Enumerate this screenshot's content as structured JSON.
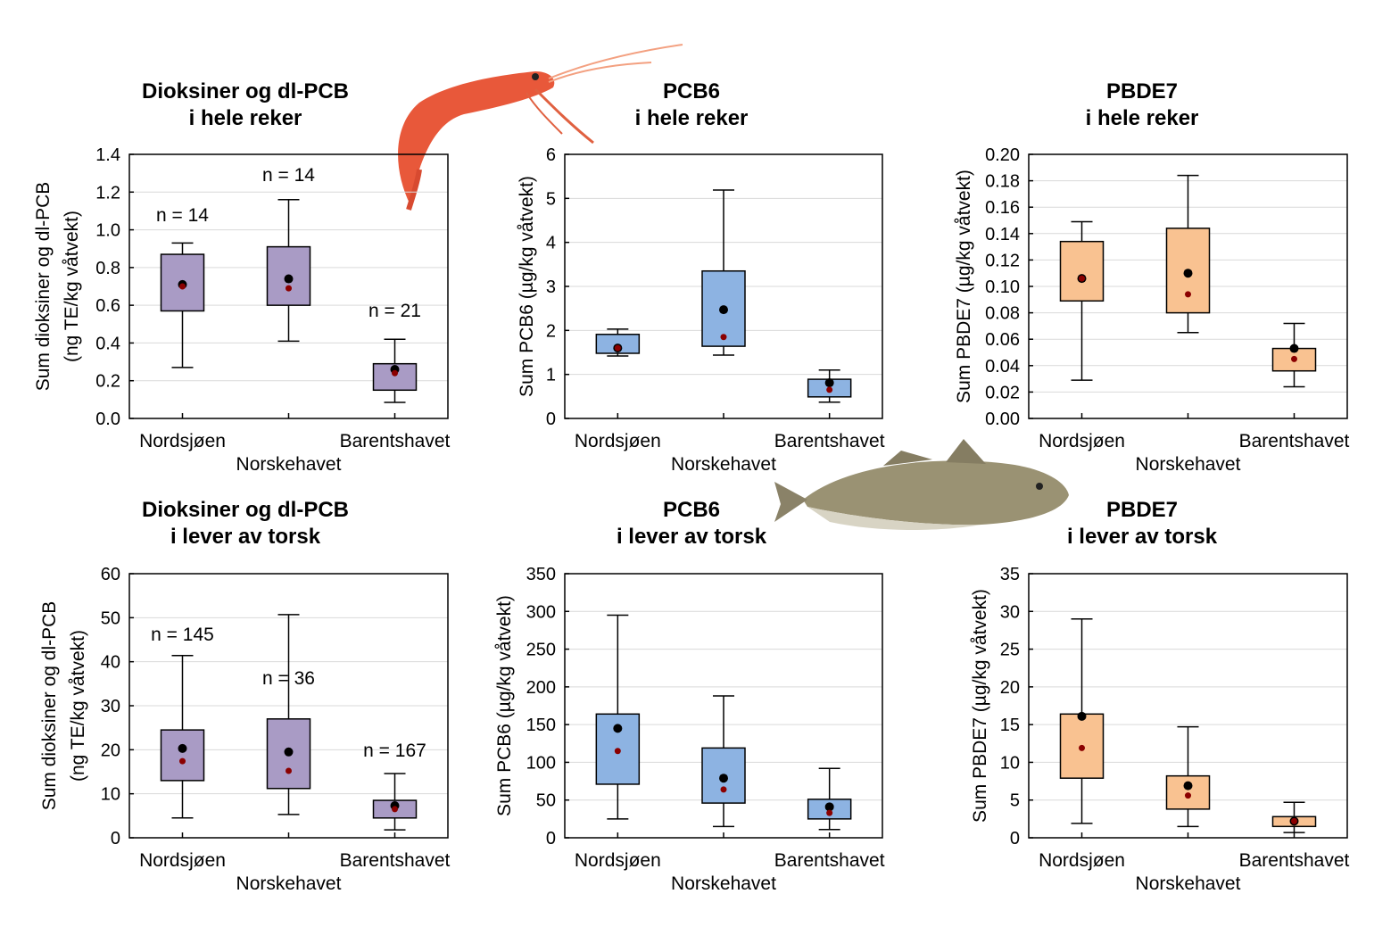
{
  "chart_data": [
    {
      "type": "box",
      "title": [
        "Dioksiner og dl-PCB",
        "i hele reker"
      ],
      "ylabel": [
        "Sum dioksiner og dl-PCB",
        "(ng TE/kg våtvekt)"
      ],
      "ylim": [
        0,
        1.4
      ],
      "ytick_step": 0.2,
      "ytick_decimals": 1,
      "yticks": [
        "0.0",
        "0.2",
        "0.4",
        "0.6",
        "0.8",
        "1.0",
        "1.2",
        "1.4"
      ],
      "grid": true,
      "box_color": "#A99BC5",
      "categories": [
        "Nordsjøen",
        "Norskehavet",
        "Barentshavet"
      ],
      "n_labels": [
        "n = 14",
        "n = 14",
        "n = 21"
      ],
      "series": [
        {
          "whisker_low": 0.27,
          "q1": 0.57,
          "q3": 0.87,
          "whisker_high": 0.93,
          "black_dot": 0.71,
          "red_dot": 0.7
        },
        {
          "whisker_low": 0.41,
          "q1": 0.6,
          "q3": 0.91,
          "whisker_high": 1.16,
          "black_dot": 0.74,
          "red_dot": 0.69
        },
        {
          "whisker_low": 0.085,
          "q1": 0.15,
          "q3": 0.29,
          "whisker_high": 0.42,
          "black_dot": 0.26,
          "red_dot": 0.24
        }
      ]
    },
    {
      "type": "box",
      "title": [
        "PCB6",
        "i hele reker"
      ],
      "ylabel": [
        "Sum PCB6 (µg/kg våtvekt)"
      ],
      "ylim": [
        0,
        6
      ],
      "ytick_step": 1,
      "ytick_decimals": 0,
      "yticks": [
        "0",
        "1",
        "2",
        "3",
        "4",
        "5",
        "6"
      ],
      "grid": true,
      "box_color": "#8DB3E2",
      "categories": [
        "Nordsjøen",
        "Norskehavet",
        "Barentshavet"
      ],
      "n_labels": [],
      "series": [
        {
          "whisker_low": 1.42,
          "q1": 1.48,
          "q3": 1.91,
          "whisker_high": 2.03,
          "black_dot": 1.6,
          "red_dot": 1.6
        },
        {
          "whisker_low": 1.44,
          "q1": 1.64,
          "q3": 3.35,
          "whisker_high": 5.19,
          "black_dot": 2.47,
          "red_dot": 1.85
        },
        {
          "whisker_low": 0.37,
          "q1": 0.49,
          "q3": 0.89,
          "whisker_high": 1.1,
          "black_dot": 0.81,
          "red_dot": 0.65
        }
      ]
    },
    {
      "type": "box",
      "title": [
        "PBDE7",
        "i hele reker"
      ],
      "ylabel": [
        "Sum PBDE7 (µg/kg våtvekt)"
      ],
      "ylim": [
        0,
        0.2
      ],
      "ytick_step": 0.02,
      "ytick_decimals": 2,
      "yticks": [
        "0.00",
        "0.02",
        "0.04",
        "0.06",
        "0.08",
        "0.10",
        "0.12",
        "0.14",
        "0.16",
        "0.18",
        "0.20"
      ],
      "grid": true,
      "box_color": "#F9C291",
      "categories": [
        "Nordsjøen",
        "Norskehavet",
        "Barentshavet"
      ],
      "n_labels": [],
      "series": [
        {
          "whisker_low": 0.029,
          "q1": 0.089,
          "q3": 0.134,
          "whisker_high": 0.149,
          "black_dot": 0.106,
          "red_dot": 0.106
        },
        {
          "whisker_low": 0.065,
          "q1": 0.08,
          "q3": 0.144,
          "whisker_high": 0.184,
          "black_dot": 0.11,
          "red_dot": 0.094
        },
        {
          "whisker_low": 0.024,
          "q1": 0.036,
          "q3": 0.053,
          "whisker_high": 0.072,
          "black_dot": 0.053,
          "red_dot": 0.045
        }
      ]
    },
    {
      "type": "box",
      "title": [
        "Dioksiner og dl-PCB",
        "i lever av torsk"
      ],
      "ylabel": [
        "Sum dioksiner og dl-PCB",
        "(ng TE/kg våtvekt)"
      ],
      "ylim": [
        0,
        60
      ],
      "ytick_step": 10,
      "ytick_decimals": 0,
      "yticks": [
        "0",
        "10",
        "20",
        "30",
        "40",
        "50",
        "60"
      ],
      "grid": true,
      "box_color": "#A99BC5",
      "categories": [
        "Nordsjøen",
        "Norskehavet",
        "Barentshavet"
      ],
      "n_labels": [
        "n = 145",
        "n = 36",
        "n = 167"
      ],
      "series": [
        {
          "whisker_low": 4.5,
          "q1": 13.0,
          "q3": 24.5,
          "whisker_high": 41.4,
          "black_dot": 20.3,
          "red_dot": 17.4
        },
        {
          "whisker_low": 5.3,
          "q1": 11.2,
          "q3": 27.0,
          "whisker_high": 50.7,
          "black_dot": 19.5,
          "red_dot": 15.2
        },
        {
          "whisker_low": 1.8,
          "q1": 4.5,
          "q3": 8.5,
          "whisker_high": 14.6,
          "black_dot": 7.3,
          "red_dot": 6.5
        }
      ]
    },
    {
      "type": "box",
      "title": [
        "PCB6",
        "i lever av torsk"
      ],
      "ylabel": [
        "Sum PCB6 (µg/kg våtvekt)"
      ],
      "ylim": [
        0,
        350
      ],
      "ytick_step": 50,
      "ytick_decimals": 0,
      "yticks": [
        "0",
        "50",
        "100",
        "150",
        "200",
        "250",
        "300",
        "350"
      ],
      "grid": true,
      "box_color": "#8DB3E2",
      "categories": [
        "Nordsjøen",
        "Norskehavet",
        "Barentshavet"
      ],
      "n_labels": [],
      "series": [
        {
          "whisker_low": 25,
          "q1": 71,
          "q3": 164,
          "whisker_high": 295,
          "black_dot": 145,
          "red_dot": 115
        },
        {
          "whisker_low": 15,
          "q1": 46,
          "q3": 119,
          "whisker_high": 188,
          "black_dot": 79,
          "red_dot": 64
        },
        {
          "whisker_low": 11,
          "q1": 25,
          "q3": 51,
          "whisker_high": 92,
          "black_dot": 41,
          "red_dot": 33
        }
      ]
    },
    {
      "type": "box",
      "title": [
        "PBDE7",
        "i lever av torsk"
      ],
      "ylabel": [
        "Sum PBDE7 (µg/kg våtvekt)"
      ],
      "ylim": [
        0,
        35
      ],
      "ytick_step": 5,
      "ytick_decimals": 0,
      "yticks": [
        "0",
        "5",
        "10",
        "15",
        "20",
        "25",
        "30",
        "35"
      ],
      "grid": true,
      "box_color": "#F9C291",
      "categories": [
        "Nordsjøen",
        "Norskehavet",
        "Barentshavet"
      ],
      "n_labels": [],
      "series": [
        {
          "whisker_low": 1.9,
          "q1": 7.9,
          "q3": 16.4,
          "whisker_high": 29.0,
          "black_dot": 16.1,
          "red_dot": 11.9
        },
        {
          "whisker_low": 1.5,
          "q1": 3.8,
          "q3": 8.2,
          "whisker_high": 14.7,
          "black_dot": 6.9,
          "red_dot": 5.6
        },
        {
          "whisker_low": 0.7,
          "q1": 1.5,
          "q3": 2.8,
          "whisker_high": 4.7,
          "black_dot": 2.2,
          "red_dot": 2.2
        }
      ]
    }
  ],
  "colors": {
    "black_dot": "#000000",
    "red_dot": "#8B0000",
    "grid": "#D9D9D9"
  },
  "images": [
    "shrimp-illustration",
    "cod-fish-illustration"
  ]
}
